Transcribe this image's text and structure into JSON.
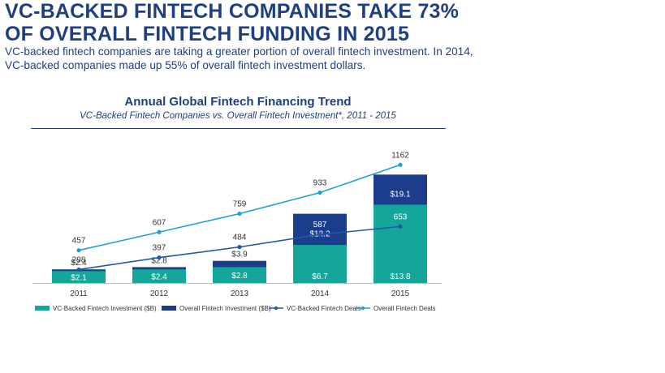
{
  "page": {
    "headline": "VC-BACKED FINTECH COMPANIES TAKE 73% OF OVERALL FINTECH FUNDING IN 2015",
    "subtext": "VC-backed fintech companies are taking a greater portion of overall fintech investment. In 2014, VC-backed companies made up 55% of overall fintech investment dollars."
  },
  "chart_data": {
    "type": "bar",
    "title": "Annual Global Fintech Financing Trend",
    "subtitle": "VC-Backed Fintech Companies vs. Overall Fintech Investment*, 2011 - 2015",
    "categories": [
      "2011",
      "2012",
      "2013",
      "2014",
      "2015"
    ],
    "xlabel": "",
    "ylabel": "",
    "grid": false,
    "legend_position": "bottom",
    "series": [
      {
        "name": "VC-Backed Fintech Investment  ($B)",
        "kind": "bar",
        "axis": "left",
        "color": "#14a69a",
        "values": [
          2.1,
          2.4,
          2.8,
          6.7,
          13.8
        ],
        "labels": [
          "$2.1",
          "$2.4",
          "$2.8",
          "$6.7",
          "$13.8"
        ]
      },
      {
        "name": "Overall Fintech Investment ($B)",
        "kind": "bar",
        "axis": "left",
        "color": "#1b3d8c",
        "values": [
          2.4,
          2.8,
          3.9,
          12.2,
          19.1
        ],
        "labels": [
          "$2.4",
          "$2.8",
          "$3.9",
          "$12.2",
          "$19.1"
        ]
      },
      {
        "name": "VC-Backed Fintech Deals",
        "kind": "line",
        "axis": "right",
        "color": "#1f5aa6",
        "values": [
          298,
          397,
          484,
          587,
          653
        ],
        "labels": [
          "298",
          "397",
          "484",
          "587",
          "653"
        ]
      },
      {
        "name": "Overall Fintech Deals",
        "kind": "line",
        "axis": "right",
        "color": "#1ea0d8",
        "values": [
          457,
          607,
          759,
          933,
          1162
        ],
        "labels": [
          "457",
          "607",
          "759",
          "933",
          "1162"
        ]
      }
    ],
    "ylim": [
      0,
      20
    ],
    "y2lim": [
      0,
      1200
    ]
  }
}
